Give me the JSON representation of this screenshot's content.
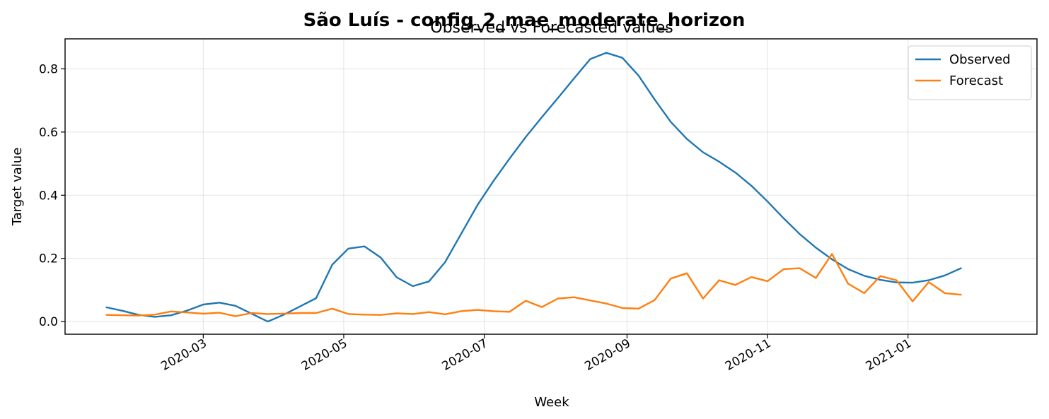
{
  "chart_data": {
    "type": "line",
    "title": "São Luís - config_2_mae_moderate_horizon",
    "subtitle": "Observed vs Forecasted values",
    "xlabel": "Week",
    "ylabel": "Target value",
    "x_ticks": [
      "2020-03",
      "2020-05",
      "2020-07",
      "2020-09",
      "2020-11",
      "2021-01"
    ],
    "y_ticks": [
      0.0,
      0.2,
      0.4,
      0.6,
      0.8
    ],
    "y_tick_labels": [
      "0.0",
      "0.2",
      "0.4",
      "0.6",
      "0.8"
    ],
    "ylim": [
      -0.04,
      0.895
    ],
    "xlim": [
      "2020-01-01",
      "2021-02-26"
    ],
    "grid": true,
    "legend_position": "top-right",
    "x": [
      "2020-01-19",
      "2020-01-26",
      "2020-02-02",
      "2020-02-09",
      "2020-02-16",
      "2020-02-23",
      "2020-03-01",
      "2020-03-08",
      "2020-03-15",
      "2020-03-22",
      "2020-03-29",
      "2020-04-05",
      "2020-04-12",
      "2020-04-19",
      "2020-04-26",
      "2020-05-03",
      "2020-05-10",
      "2020-05-17",
      "2020-05-24",
      "2020-05-31",
      "2020-06-07",
      "2020-06-14",
      "2020-06-21",
      "2020-06-28",
      "2020-07-05",
      "2020-07-12",
      "2020-07-19",
      "2020-07-26",
      "2020-08-02",
      "2020-08-09",
      "2020-08-16",
      "2020-08-23",
      "2020-08-30",
      "2020-09-06",
      "2020-09-13",
      "2020-09-20",
      "2020-09-27",
      "2020-10-04",
      "2020-10-11",
      "2020-10-18",
      "2020-10-25",
      "2020-11-01",
      "2020-11-08",
      "2020-11-15",
      "2020-11-22",
      "2020-11-29",
      "2020-12-06",
      "2020-12-13",
      "2020-12-20",
      "2020-12-27",
      "2021-01-03",
      "2021-01-10",
      "2021-01-17",
      "2021-01-24"
    ],
    "series": [
      {
        "name": "Observed",
        "color": "#1f77b4",
        "values": [
          0.045,
          0.034,
          0.021,
          0.015,
          0.02,
          0.035,
          0.054,
          0.06,
          0.05,
          0.025,
          0.0,
          0.022,
          0.048,
          0.074,
          0.18,
          0.231,
          0.238,
          0.203,
          0.14,
          0.112,
          0.127,
          0.188,
          0.278,
          0.368,
          0.445,
          0.516,
          0.584,
          0.647,
          0.708,
          0.77,
          0.831,
          0.851,
          0.835,
          0.779,
          0.703,
          0.632,
          0.578,
          0.536,
          0.506,
          0.472,
          0.43,
          0.38,
          0.327,
          0.277,
          0.234,
          0.197,
          0.166,
          0.145,
          0.132,
          0.124,
          0.123,
          0.131,
          0.146,
          0.169
        ]
      },
      {
        "name": "Forecast",
        "color": "#ff7f0e",
        "values": [
          0.021,
          0.02,
          0.019,
          0.022,
          0.032,
          0.029,
          0.025,
          0.028,
          0.017,
          0.027,
          0.024,
          0.025,
          0.027,
          0.027,
          0.041,
          0.024,
          0.022,
          0.021,
          0.026,
          0.024,
          0.03,
          0.023,
          0.033,
          0.037,
          0.033,
          0.031,
          0.066,
          0.046,
          0.073,
          0.077,
          0.067,
          0.057,
          0.043,
          0.041,
          0.068,
          0.136,
          0.153,
          0.073,
          0.131,
          0.116,
          0.141,
          0.128,
          0.166,
          0.169,
          0.138,
          0.214,
          0.12,
          0.09,
          0.144,
          0.131,
          0.064,
          0.125,
          0.09,
          0.085
        ]
      }
    ]
  }
}
